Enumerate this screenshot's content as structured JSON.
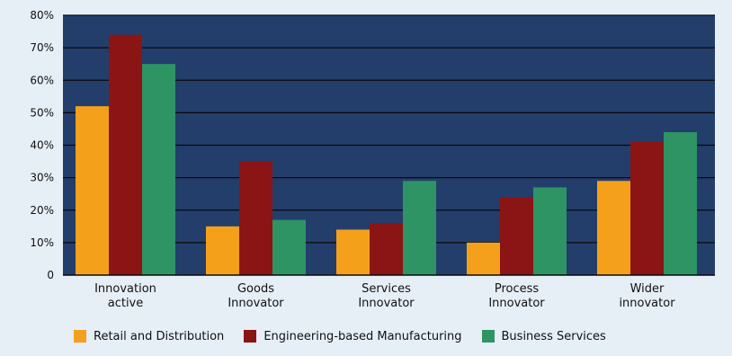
{
  "chart_data": {
    "type": "bar",
    "title": "",
    "xlabel": "",
    "ylabel": "",
    "ylim": [
      0,
      80
    ],
    "yticks": [
      "0",
      "10%",
      "20%",
      "30%",
      "40%",
      "50%",
      "60%",
      "70%",
      "80%"
    ],
    "ytick_values": [
      0,
      10,
      20,
      30,
      40,
      50,
      60,
      70,
      80
    ],
    "grid": true,
    "legend_position": "bottom",
    "categories": [
      [
        "Innovation",
        "active"
      ],
      [
        "Goods",
        "Innovator"
      ],
      [
        "Services",
        "Innovator"
      ],
      [
        "Process",
        "Innovator"
      ],
      [
        "Wider",
        "innovator"
      ]
    ],
    "series": [
      {
        "name": "Retail and Distribution",
        "color": "#f5a01a",
        "values": [
          52,
          15,
          14,
          10,
          29
        ]
      },
      {
        "name": "Engineering-based Manufacturing",
        "color": "#8b1414",
        "values": [
          74,
          35,
          16,
          24,
          41
        ]
      },
      {
        "name": "Business Services",
        "color": "#2e9464",
        "values": [
          65,
          17,
          29,
          27,
          44
        ]
      }
    ],
    "plot_background": "#243e6b",
    "gridline_color": "#0a0a0a"
  }
}
